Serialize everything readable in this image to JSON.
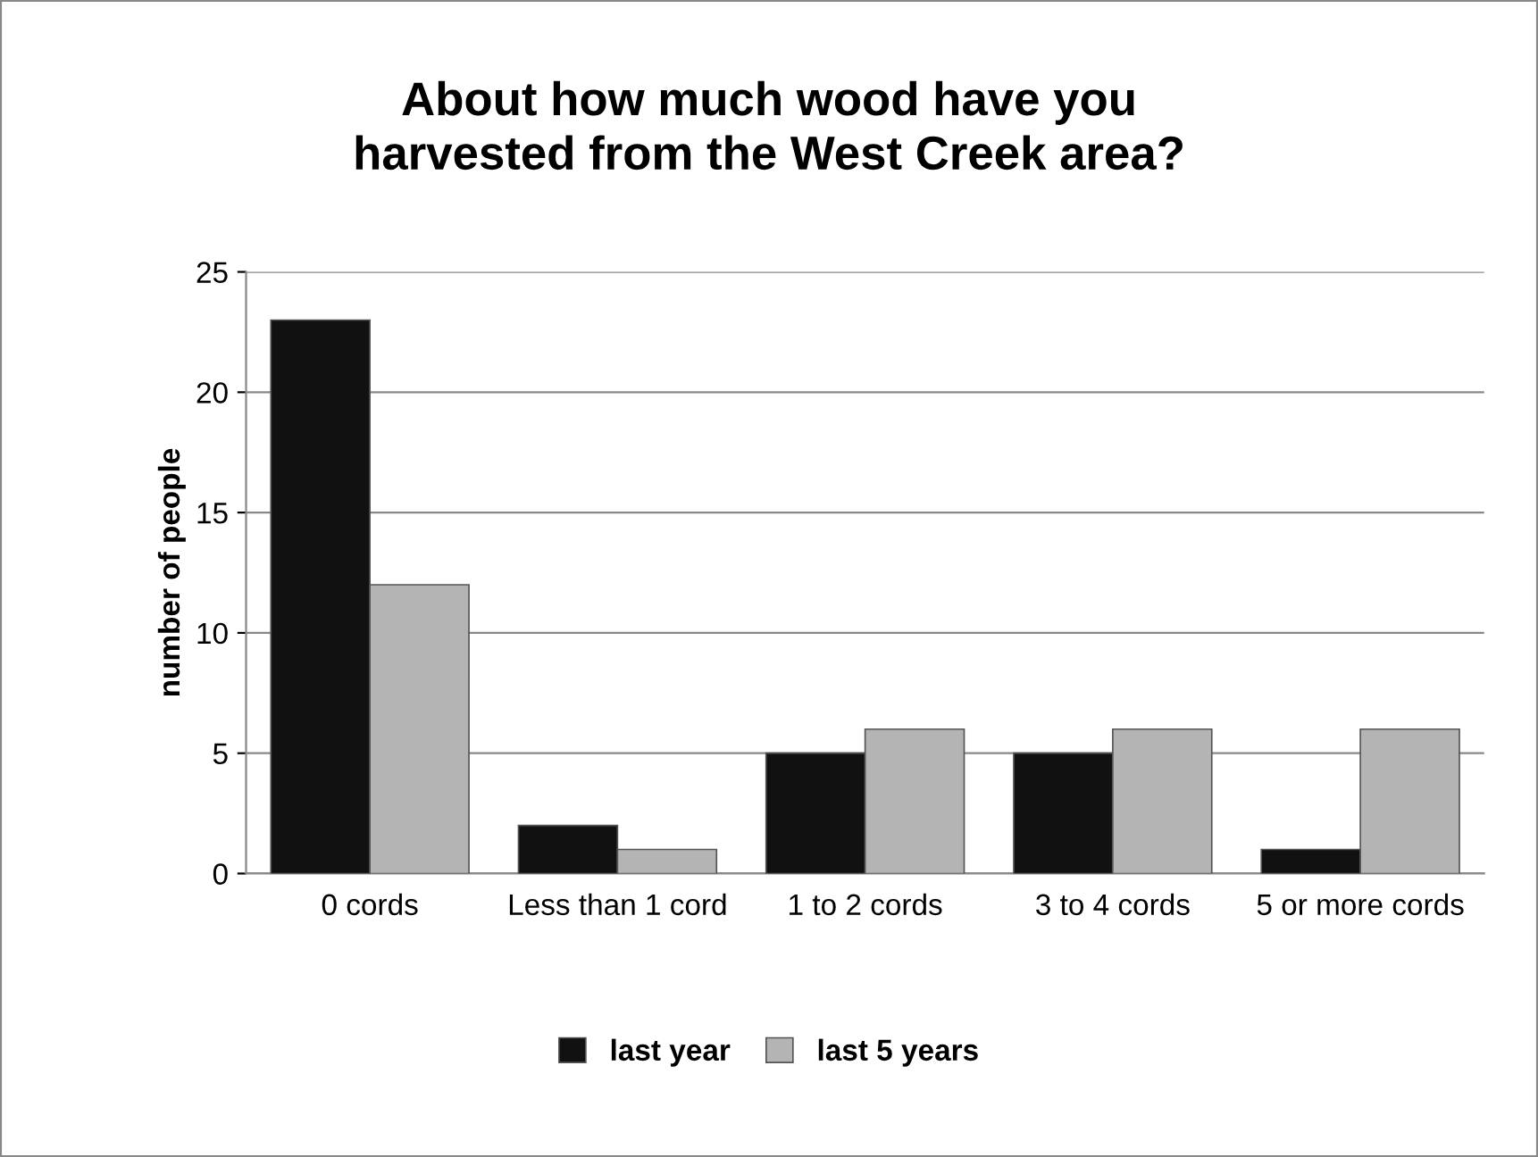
{
  "chart_data": {
    "type": "bar",
    "title": "About how much wood have you\nharvested from the West Creek area?",
    "ylabel": "number of people",
    "categories": [
      "0 cords",
      "Less than 1 cord",
      "1 to 2 cords",
      "3 to 4 cords",
      "5 or more cords"
    ],
    "series": [
      {
        "name": "last year",
        "color": "#111111",
        "values": [
          23,
          2,
          5,
          5,
          1
        ]
      },
      {
        "name": "last 5 years",
        "color": "#b4b4b4",
        "values": [
          12,
          1,
          6,
          6,
          6
        ]
      }
    ],
    "ylim": [
      0,
      25
    ],
    "yticks": [
      0,
      5,
      10,
      15,
      20,
      25
    ],
    "grid": "y",
    "legend": "bottom"
  }
}
